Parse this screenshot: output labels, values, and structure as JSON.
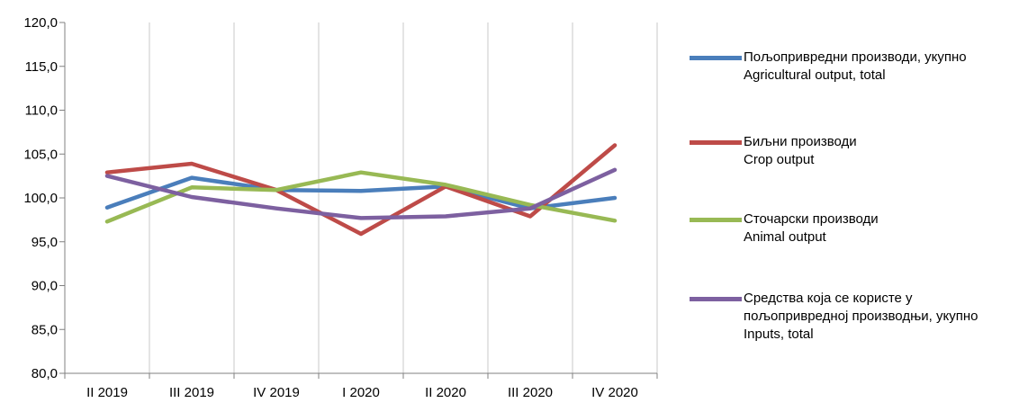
{
  "chart_data": {
    "type": "line",
    "categories": [
      "II 2019",
      "III 2019",
      "IV 2019",
      "I 2020",
      "II 2020",
      "III 2020",
      "IV 2020"
    ],
    "ylim": [
      80,
      120
    ],
    "yticks": [
      "80,0",
      "85,0",
      "90,0",
      "95,0",
      "100,0",
      "105,0",
      "110,0",
      "115,0",
      "120,0"
    ],
    "grid": "vertical",
    "legend_position": "right",
    "series": [
      {
        "name": "Пољопривредни производи, укупно",
        "name_lines": [
          "Пољопривредни производи, укупно",
          "Agricultural output, total"
        ],
        "color": "#4a7ebb",
        "values": [
          98.9,
          102.3,
          100.9,
          100.8,
          101.3,
          98.8,
          100.0
        ]
      },
      {
        "name": "Биљни производи",
        "name_lines": [
          "Биљни производи",
          "Crop output"
        ],
        "color": "#be4b48",
        "values": [
          102.9,
          103.9,
          100.9,
          95.9,
          101.3,
          97.9,
          106.0
        ]
      },
      {
        "name": "Сточарски производи",
        "name_lines": [
          "Сточарски производи",
          "Animal output"
        ],
        "color": "#98b954",
        "values": [
          97.3,
          101.2,
          100.9,
          102.9,
          101.5,
          99.2,
          97.4
        ]
      },
      {
        "name": "Средства која се користе у пољопривредној производњи, укупно",
        "name_lines": [
          "Средства која се користе у",
          "пољопривредној производњи, укупно",
          "Inputs, total"
        ],
        "color": "#7d60a0",
        "values": [
          102.5,
          100.1,
          98.8,
          97.7,
          97.9,
          98.8,
          103.2
        ]
      }
    ]
  }
}
